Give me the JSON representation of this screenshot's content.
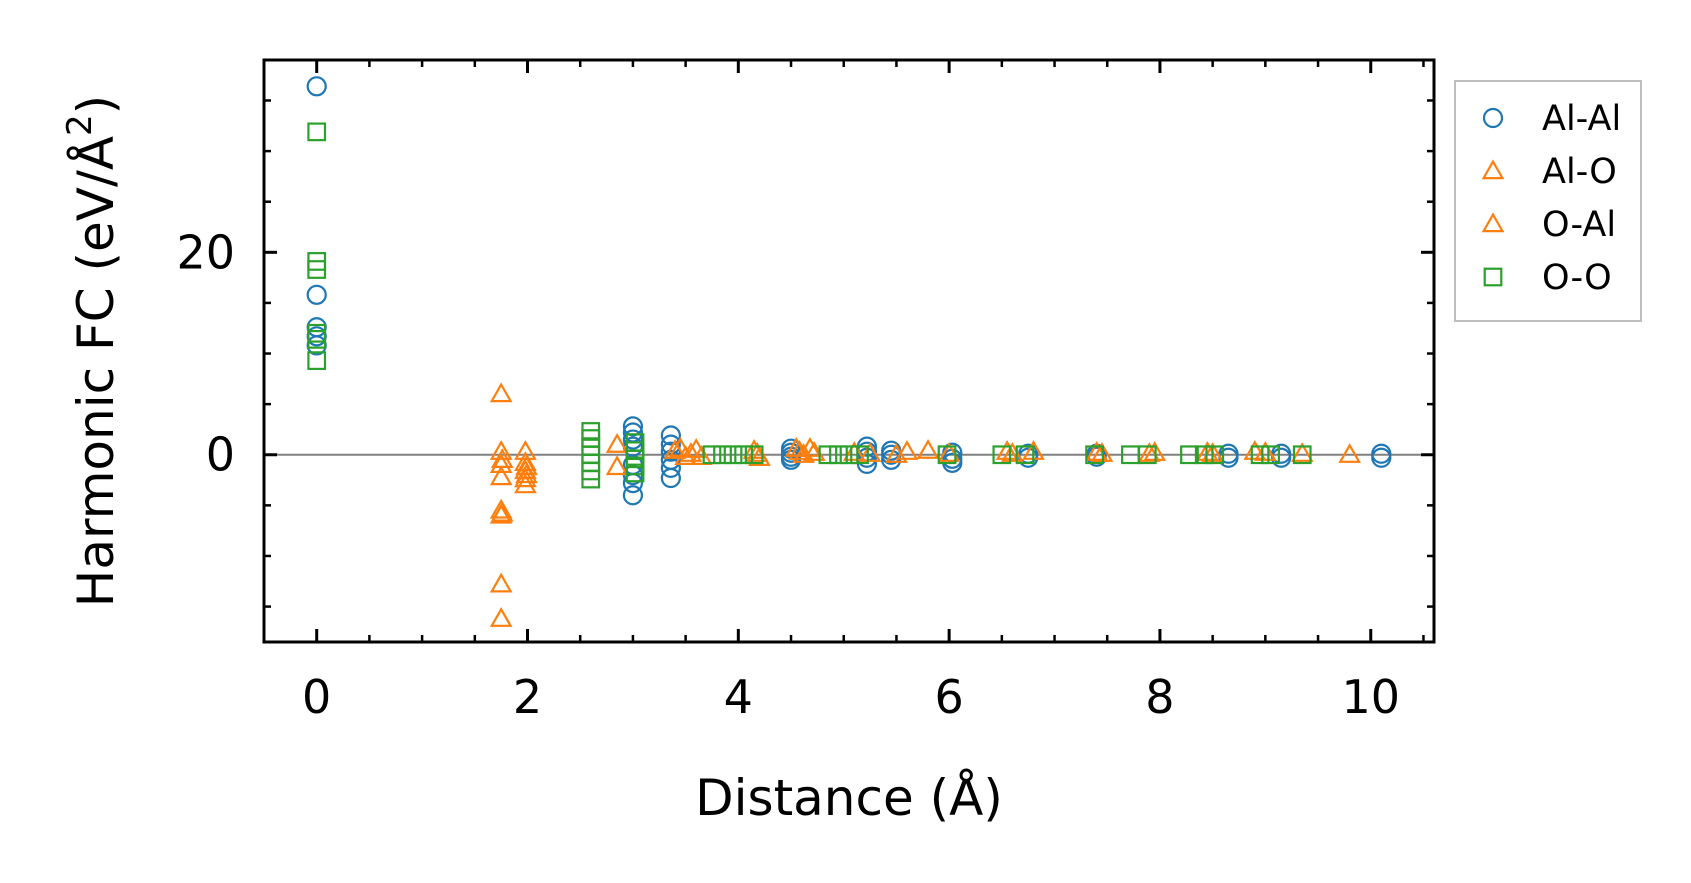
{
  "chart_data": {
    "type": "scatter",
    "title": "",
    "xlabel": "Distance (Å)",
    "ylabel_main": "Harmonic FC (eV/Å",
    "ylabel_sup": "2",
    "ylabel_close": ")",
    "xlim": [
      -0.5,
      10.6
    ],
    "ylim": [
      -18.5,
      39
    ],
    "xticks": [
      0,
      2,
      4,
      6,
      8,
      10
    ],
    "xtick_labels": [
      "0",
      "2",
      "4",
      "6",
      "8",
      "10"
    ],
    "yticks": [
      0,
      20
    ],
    "ytick_labels": [
      "0",
      "20"
    ],
    "x_minor_step": 0.5,
    "y_minor_step": 5,
    "zero_line": true,
    "legend_position": "outside right, top",
    "series": [
      {
        "name": "Al-Al",
        "marker": "circle",
        "color": "#1f77b4",
        "points": [
          [
            0,
            36.4
          ],
          [
            0,
            15.8
          ],
          [
            0,
            12.6
          ],
          [
            0,
            11.7
          ],
          [
            0,
            10.8
          ],
          [
            3.0,
            2.8
          ],
          [
            3.0,
            2.2
          ],
          [
            3.0,
            1.5
          ],
          [
            3.0,
            0.8
          ],
          [
            3.0,
            -1.0
          ],
          [
            3.0,
            -2.0
          ],
          [
            3.0,
            -2.8
          ],
          [
            3.0,
            -4.0
          ],
          [
            3.36,
            1.9
          ],
          [
            3.36,
            1.0
          ],
          [
            3.36,
            0.3
          ],
          [
            3.36,
            -0.5
          ],
          [
            3.36,
            -1.3
          ],
          [
            3.36,
            -2.3
          ],
          [
            4.5,
            0.6
          ],
          [
            4.5,
            0.2
          ],
          [
            4.5,
            -0.2
          ],
          [
            4.5,
            -0.5
          ],
          [
            5.22,
            0.8
          ],
          [
            5.22,
            0.3
          ],
          [
            5.22,
            -0.3
          ],
          [
            5.22,
            -0.9
          ],
          [
            5.45,
            0.4
          ],
          [
            5.45,
            0.0
          ],
          [
            5.45,
            -0.5
          ],
          [
            6.03,
            0.2
          ],
          [
            6.03,
            -0.4
          ],
          [
            6.03,
            -0.8
          ],
          [
            6.75,
            0.1
          ],
          [
            6.75,
            -0.3
          ],
          [
            7.4,
            0.1
          ],
          [
            7.4,
            -0.2
          ],
          [
            8.65,
            0.1
          ],
          [
            8.65,
            -0.3
          ],
          [
            9.15,
            0.1
          ],
          [
            9.15,
            -0.3
          ],
          [
            10.1,
            0.1
          ],
          [
            10.1,
            -0.3
          ]
        ]
      },
      {
        "name": "Al-O",
        "marker": "triangle",
        "color": "#ff7f0e",
        "points": [
          [
            1.75,
            6.0
          ],
          [
            1.75,
            0.3
          ],
          [
            1.75,
            -1.0
          ],
          [
            1.75,
            -2.2
          ],
          [
            1.75,
            -5.5
          ],
          [
            1.75,
            -6.0
          ],
          [
            1.75,
            -12.8
          ],
          [
            1.75,
            -16.2
          ],
          [
            1.98,
            0.3
          ],
          [
            1.98,
            -0.8
          ],
          [
            1.98,
            -1.6
          ],
          [
            1.98,
            -2.4
          ],
          [
            1.98,
            -3.0
          ],
          [
            2.85,
            1.0
          ],
          [
            2.85,
            -1.2
          ],
          [
            3.4,
            0.4
          ],
          [
            3.5,
            -0.2
          ],
          [
            3.6,
            0.5
          ],
          [
            4.15,
            0.4
          ],
          [
            4.2,
            -0.3
          ],
          [
            4.55,
            0.6
          ],
          [
            4.62,
            0.0
          ],
          [
            4.68,
            0.6
          ],
          [
            5.1,
            0.2
          ],
          [
            5.5,
            0.0
          ],
          [
            5.6,
            0.3
          ],
          [
            5.8,
            0.4
          ],
          [
            6.55,
            0.3
          ],
          [
            6.8,
            0.3
          ],
          [
            7.4,
            0.2
          ],
          [
            7.95,
            0.2
          ],
          [
            8.45,
            0.2
          ],
          [
            8.9,
            0.3
          ],
          [
            9.35,
            0.1
          ],
          [
            9.8,
            0.0
          ]
        ]
      },
      {
        "name": "O-Al",
        "marker": "triangle",
        "color": "#ff7f0e",
        "points": [
          [
            1.76,
            -0.5
          ],
          [
            1.76,
            -5.8
          ],
          [
            1.99,
            -1.2
          ],
          [
            1.99,
            -2.0
          ],
          [
            3.45,
            0.6
          ],
          [
            3.55,
            0.1
          ],
          [
            3.65,
            -0.2
          ],
          [
            4.18,
            0.1
          ],
          [
            4.58,
            0.3
          ],
          [
            4.72,
            0.2
          ],
          [
            5.25,
            0.1
          ],
          [
            6.0,
            0.1
          ],
          [
            6.6,
            0.1
          ],
          [
            7.45,
            0.1
          ],
          [
            7.9,
            0.1
          ],
          [
            8.5,
            0.1
          ],
          [
            9.0,
            0.2
          ]
        ]
      },
      {
        "name": "O-O",
        "marker": "square",
        "color": "#2ca02c",
        "points": [
          [
            0,
            31.9
          ],
          [
            0,
            19.1
          ],
          [
            0,
            18.3
          ],
          [
            0,
            12.0
          ],
          [
            0,
            11.4
          ],
          [
            0,
            9.3
          ],
          [
            2.6,
            2.3
          ],
          [
            2.6,
            1.6
          ],
          [
            2.6,
            0.8
          ],
          [
            2.6,
            0.0
          ],
          [
            2.6,
            -0.8
          ],
          [
            2.6,
            -1.6
          ],
          [
            2.6,
            -2.4
          ],
          [
            3.02,
            1.2
          ],
          [
            3.02,
            0.4
          ],
          [
            3.02,
            -0.4
          ],
          [
            3.02,
            -1.1
          ],
          [
            3.02,
            -1.8
          ],
          [
            3.75,
            0.0
          ],
          [
            3.85,
            0.0
          ],
          [
            3.95,
            0.0
          ],
          [
            4.05,
            0.0
          ],
          [
            4.15,
            0.0
          ],
          [
            4.85,
            0.0
          ],
          [
            4.95,
            0.0
          ],
          [
            5.05,
            0.0
          ],
          [
            5.15,
            0.0
          ],
          [
            5.98,
            0.0
          ],
          [
            6.5,
            0.0
          ],
          [
            6.72,
            0.0
          ],
          [
            7.38,
            0.0
          ],
          [
            7.72,
            0.0
          ],
          [
            7.88,
            0.0
          ],
          [
            8.28,
            0.0
          ],
          [
            8.42,
            0.0
          ],
          [
            8.52,
            0.0
          ],
          [
            8.95,
            0.0
          ],
          [
            9.05,
            0.0
          ],
          [
            9.35,
            0.0
          ]
        ]
      }
    ]
  }
}
